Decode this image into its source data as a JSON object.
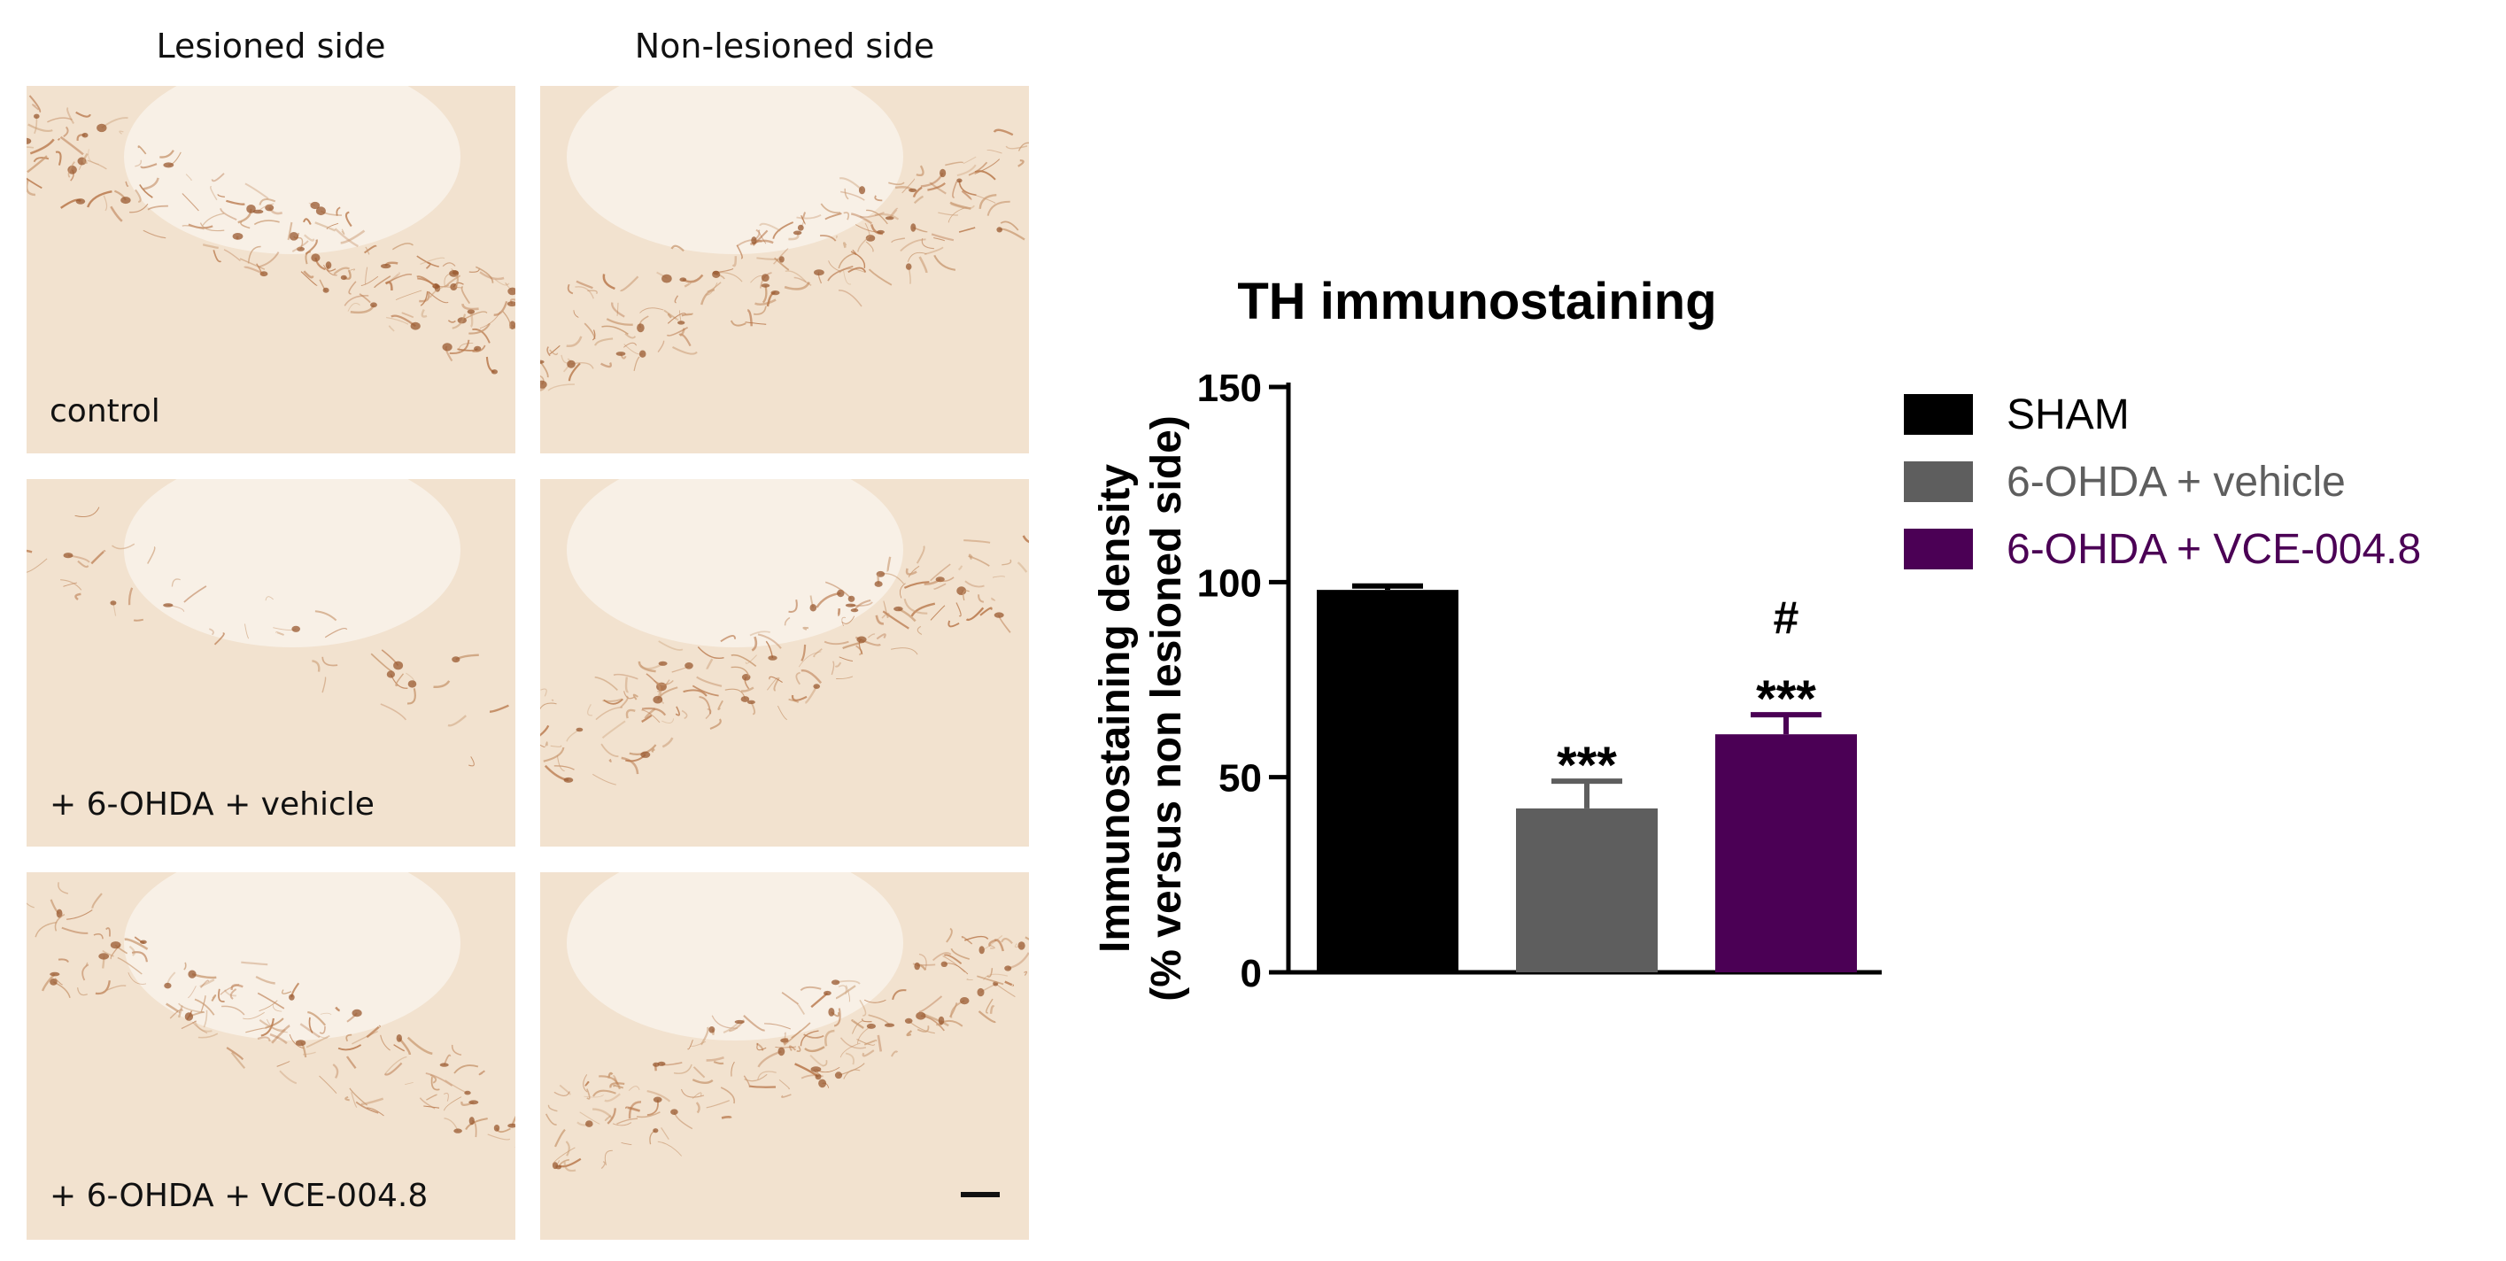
{
  "micrographs": {
    "column_headers": [
      "Lesioned side",
      "Non-lesioned side"
    ],
    "row_labels": [
      "control",
      "+ 6-OHDA + vehicle",
      "+ 6-OHDA + VCE-004.8"
    ]
  },
  "chart_data": {
    "type": "bar",
    "title": "TH immunostaining",
    "ylabel_line1": "Immunostaining density",
    "ylabel_line2": "(% versus non lesioned side)",
    "xlabel": "",
    "ylim": [
      0,
      150
    ],
    "yticks": [
      0,
      50,
      100,
      150
    ],
    "categories": [
      "SHAM",
      "6-OHDA + vehicle",
      "6-OHDA + VCE-004.8"
    ],
    "values": [
      98,
      42,
      61
    ],
    "errors": [
      1,
      7,
      5
    ],
    "colors": [
      "#000000",
      "#5e5e5e",
      "#4b0055"
    ],
    "annotations": [
      {
        "category": "6-OHDA + vehicle",
        "lines": [
          "***"
        ]
      },
      {
        "category": "6-OHDA + VCE-004.8",
        "lines": [
          "#",
          "***"
        ]
      }
    ],
    "legend": {
      "placement": "right",
      "items": [
        {
          "label": "SHAM",
          "color": "#000000"
        },
        {
          "label": "6-OHDA + vehicle",
          "color": "#5e5e5e"
        },
        {
          "label": "6-OHDA + VCE-004.8",
          "color": "#4b0055"
        }
      ]
    },
    "grid": false
  }
}
